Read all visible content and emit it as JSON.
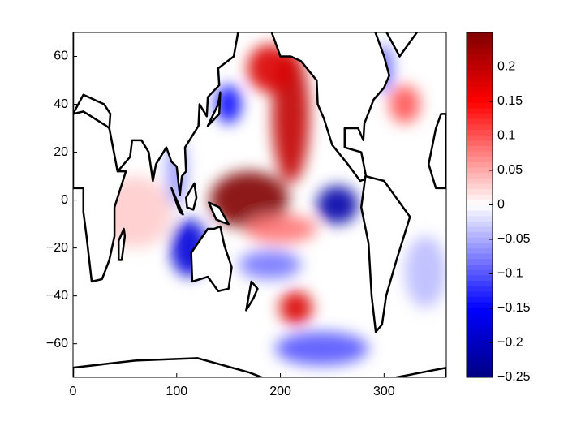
{
  "chart_data": {
    "type": "map",
    "xlim": [
      0,
      360
    ],
    "xticks": [
      0,
      100,
      200,
      300
    ],
    "ylim": [
      -74,
      70
    ],
    "yticks": [
      {
        "value": -60,
        "label": "−60"
      },
      {
        "value": -40,
        "label": "−40"
      },
      {
        "value": -20,
        "label": "−20"
      },
      0,
      20,
      40,
      60
    ],
    "clim": [
      -0.25,
      0.25
    ],
    "cticks": [
      {
        "value": -0.25,
        "label": "−0.25"
      },
      {
        "value": -0.2,
        "label": "−0.2"
      },
      {
        "value": -0.15,
        "label": "−0.15"
      },
      {
        "value": -0.1,
        "label": "−0.1"
      },
      {
        "value": -0.05,
        "label": "−0.05"
      },
      0,
      0.05,
      0.1,
      0.15,
      0.2
    ],
    "anomalies": {
      "lon": [
        170,
        210,
        190,
        255,
        112,
        150,
        215,
        190,
        200,
        60,
        240,
        320,
        300,
        340,
        100
      ],
      "lat": [
        0,
        35,
        55,
        -2,
        -20,
        40,
        -45,
        -27,
        -12,
        -5,
        -62,
        40,
        55,
        -30,
        12
      ],
      "values": [
        0.25,
        0.2,
        0.18,
        -0.22,
        -0.18,
        -0.15,
        0.18,
        -0.08,
        0.08,
        0.03,
        -0.1,
        0.1,
        -0.1,
        -0.04,
        -0.06
      ]
    }
  }
}
